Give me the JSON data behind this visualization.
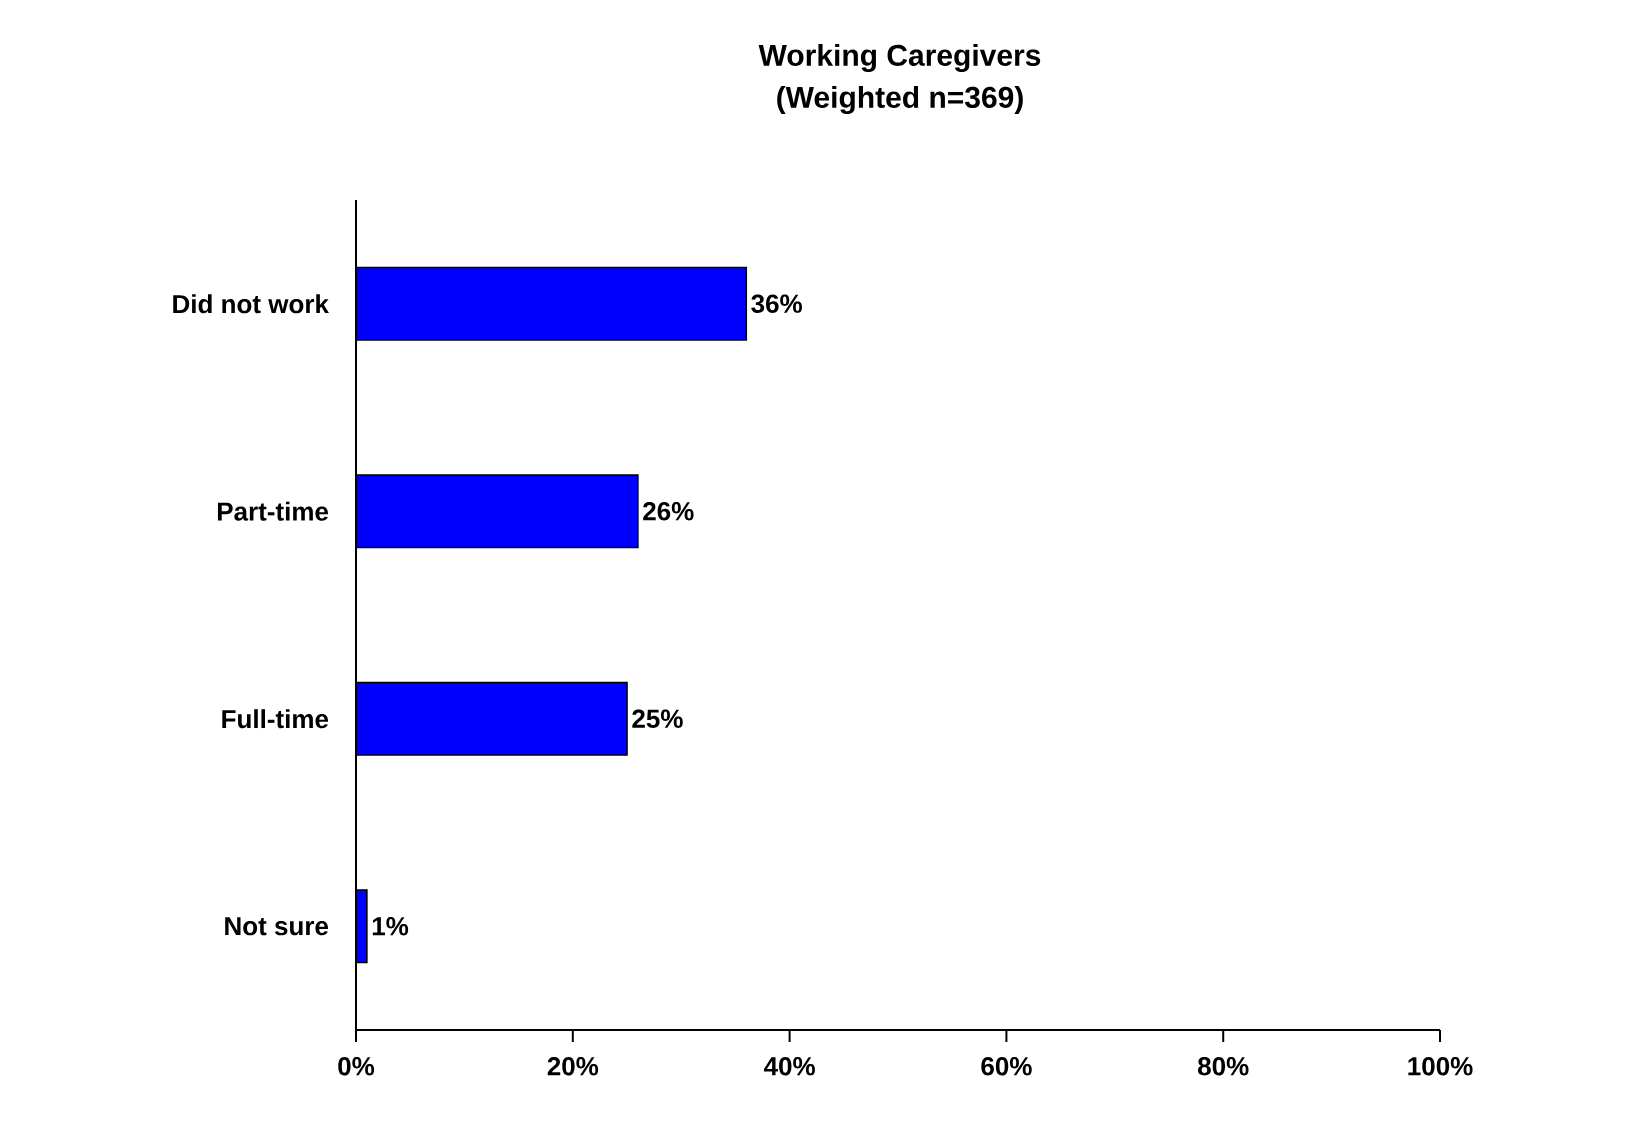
{
  "chart_data": {
    "type": "bar",
    "title": "Working Caregivers",
    "subtitle": "(Weighted n=369)",
    "orientation": "horizontal",
    "categories": [
      "Did not work",
      "Part-time",
      "Full-time",
      "Not sure"
    ],
    "values": [
      36,
      26,
      25,
      1
    ],
    "value_labels": [
      "36%",
      "26%",
      "25%",
      "1%"
    ],
    "color": "#0000ff",
    "xlim": [
      0,
      100
    ],
    "xticks": [
      {
        "value": 0,
        "label": "0%"
      },
      {
        "value": 20,
        "label": "20%"
      },
      {
        "value": 40,
        "label": "40%"
      },
      {
        "value": 60,
        "label": "60%"
      },
      {
        "value": 80,
        "label": "80%"
      },
      {
        "value": 100,
        "label": "100%"
      }
    ],
    "grid": false
  }
}
